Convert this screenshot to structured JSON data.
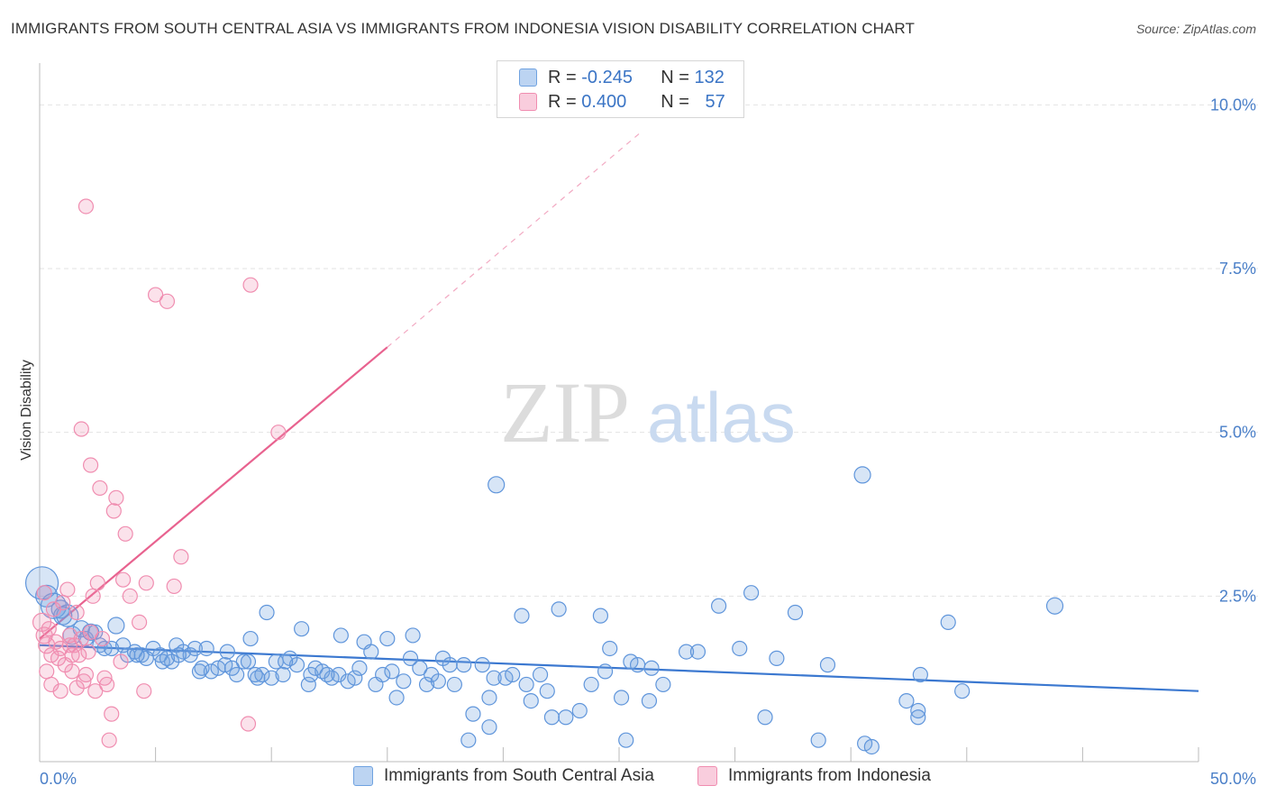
{
  "title": "IMMIGRANTS FROM SOUTH CENTRAL ASIA VS IMMIGRANTS FROM INDONESIA VISION DISABILITY CORRELATION CHART",
  "source": "Source: ZipAtlas.com",
  "watermark": {
    "zip": "ZIP",
    "atlas": "atlas"
  },
  "legend": {
    "rows": [
      {
        "r_label": "R = ",
        "r_value": "-0.245",
        "n_label": "N = ",
        "n_value": "132",
        "color": "#6fa2e0"
      },
      {
        "r_label": "R = ",
        "r_value": "0.400",
        "n_label": "N = ",
        "n_value": "57",
        "color": "#f08db0"
      }
    ]
  },
  "bottom_legend": [
    {
      "label": "Immigrants from South Central Asia",
      "color": "#6fa2e0"
    },
    {
      "label": "Immigrants from Indonesia",
      "color": "#f08db0"
    }
  ],
  "chart_data": {
    "type": "scatter",
    "title": "IMMIGRANTS FROM SOUTH CENTRAL ASIA VS IMMIGRANTS FROM INDONESIA VISION DISABILITY CORRELATION CHART",
    "xlabel": "",
    "ylabel": "Vision Disability",
    "xlim": [
      0,
      50
    ],
    "ylim": [
      0,
      10.5
    ],
    "x_tick_labels": [
      "0.0%",
      "50.0%"
    ],
    "y_tick_labels": [
      "2.5%",
      "5.0%",
      "7.5%",
      "10.0%"
    ],
    "y_ticks": [
      2.5,
      5.0,
      7.5,
      10.0
    ],
    "grid": "horizontal dashed",
    "series": [
      {
        "name": "Immigrants from South Central Asia",
        "color": "#6fa2e0",
        "trend": {
          "x0": 0,
          "y0": 1.75,
          "x1": 50,
          "y1": 1.05
        },
        "points": [
          [
            0.1,
            2.7,
            18
          ],
          [
            0.3,
            2.5,
            12
          ],
          [
            0.6,
            2.35,
            14
          ],
          [
            0.9,
            2.3,
            10
          ],
          [
            1.2,
            2.2,
            12
          ],
          [
            1.4,
            1.9,
            10
          ],
          [
            1.8,
            2.0,
            9
          ],
          [
            2.0,
            1.85,
            8
          ],
          [
            2.2,
            1.95,
            9
          ],
          [
            2.6,
            1.75,
            8
          ],
          [
            3.3,
            2.05,
            9
          ],
          [
            2.8,
            1.7,
            8
          ],
          [
            3.8,
            1.6,
            8
          ],
          [
            3.6,
            1.75,
            8
          ],
          [
            4.1,
            1.65,
            8
          ],
          [
            4.4,
            1.6,
            8
          ],
          [
            4.6,
            1.55,
            8
          ],
          [
            4.9,
            1.7,
            8
          ],
          [
            5.2,
            1.6,
            8
          ],
          [
            5.3,
            1.5,
            8
          ],
          [
            5.7,
            1.5,
            8
          ],
          [
            5.9,
            1.75,
            8
          ],
          [
            6.2,
            1.65,
            8
          ],
          [
            6.5,
            1.6,
            8
          ],
          [
            6.7,
            1.7,
            8
          ],
          [
            6.9,
            1.35,
            8
          ],
          [
            7.2,
            1.7,
            8
          ],
          [
            7.4,
            1.35,
            8
          ],
          [
            7.7,
            1.4,
            8
          ],
          [
            8.0,
            1.45,
            8
          ],
          [
            8.1,
            1.65,
            8
          ],
          [
            8.5,
            1.3,
            8
          ],
          [
            8.8,
            1.5,
            8
          ],
          [
            9.0,
            1.5,
            8
          ],
          [
            9.1,
            1.85,
            8
          ],
          [
            9.4,
            1.25,
            8
          ],
          [
            9.6,
            1.3,
            8
          ],
          [
            9.8,
            2.25,
            8
          ],
          [
            10.0,
            1.25,
            8
          ],
          [
            10.2,
            1.5,
            8
          ],
          [
            10.5,
            1.3,
            8
          ],
          [
            10.8,
            1.55,
            8
          ],
          [
            11.1,
            1.45,
            8
          ],
          [
            11.3,
            2.0,
            8
          ],
          [
            11.6,
            1.15,
            8
          ],
          [
            11.7,
            1.3,
            8
          ],
          [
            11.9,
            1.4,
            8
          ],
          [
            12.2,
            1.35,
            8
          ],
          [
            12.6,
            1.25,
            8
          ],
          [
            12.9,
            1.3,
            8
          ],
          [
            13.0,
            1.9,
            8
          ],
          [
            13.3,
            1.2,
            8
          ],
          [
            13.6,
            1.25,
            8
          ],
          [
            13.8,
            1.4,
            8
          ],
          [
            14.0,
            1.8,
            8
          ],
          [
            14.3,
            1.65,
            8
          ],
          [
            14.5,
            1.15,
            8
          ],
          [
            14.8,
            1.3,
            8
          ],
          [
            15.0,
            1.85,
            8
          ],
          [
            15.2,
            1.35,
            8
          ],
          [
            15.4,
            0.95,
            8
          ],
          [
            15.7,
            1.2,
            8
          ],
          [
            16.0,
            1.55,
            8
          ],
          [
            16.1,
            1.9,
            8
          ],
          [
            16.4,
            1.4,
            8
          ],
          [
            16.7,
            1.15,
            8
          ],
          [
            16.9,
            1.3,
            8
          ],
          [
            17.2,
            1.2,
            8
          ],
          [
            17.4,
            1.55,
            8
          ],
          [
            17.7,
            1.45,
            8
          ],
          [
            17.9,
            1.15,
            8
          ],
          [
            18.3,
            1.45,
            8
          ],
          [
            18.5,
            0.3,
            8
          ],
          [
            18.7,
            0.7,
            8
          ],
          [
            19.1,
            1.45,
            8
          ],
          [
            19.4,
            0.95,
            8
          ],
          [
            19.6,
            1.25,
            8
          ],
          [
            19.4,
            0.5,
            8
          ],
          [
            19.7,
            4.2,
            9
          ],
          [
            20.1,
            1.25,
            8
          ],
          [
            20.4,
            1.3,
            8
          ],
          [
            20.8,
            2.2,
            8
          ],
          [
            21.0,
            1.15,
            8
          ],
          [
            21.2,
            0.9,
            8
          ],
          [
            21.6,
            1.3,
            8
          ],
          [
            21.9,
            1.05,
            8
          ],
          [
            22.1,
            0.65,
            8
          ],
          [
            22.4,
            2.3,
            8
          ],
          [
            22.7,
            0.65,
            8
          ],
          [
            23.3,
            0.75,
            8
          ],
          [
            23.8,
            1.15,
            8
          ],
          [
            24.2,
            2.2,
            8
          ],
          [
            24.4,
            1.35,
            8
          ],
          [
            24.6,
            1.7,
            8
          ],
          [
            25.1,
            0.95,
            8
          ],
          [
            25.5,
            1.5,
            8
          ],
          [
            25.8,
            1.45,
            8
          ],
          [
            26.3,
            0.9,
            8
          ],
          [
            26.4,
            1.4,
            8
          ],
          [
            26.9,
            1.15,
            8
          ],
          [
            25.3,
            0.3,
            8
          ],
          [
            27.9,
            1.65,
            8
          ],
          [
            28.4,
            1.65,
            8
          ],
          [
            29.3,
            2.35,
            8
          ],
          [
            30.2,
            1.7,
            8
          ],
          [
            30.7,
            2.55,
            8
          ],
          [
            31.3,
            0.65,
            8
          ],
          [
            31.8,
            1.55,
            8
          ],
          [
            32.6,
            2.25,
            8
          ],
          [
            33.6,
            0.3,
            8
          ],
          [
            34.0,
            1.45,
            8
          ],
          [
            35.5,
            4.35,
            9
          ],
          [
            35.6,
            0.25,
            8
          ],
          [
            35.9,
            0.2,
            8
          ],
          [
            37.4,
            0.9,
            8
          ],
          [
            37.9,
            0.75,
            8
          ],
          [
            37.9,
            0.65,
            8
          ],
          [
            38.0,
            1.3,
            8
          ],
          [
            39.2,
            2.1,
            8
          ],
          [
            39.8,
            1.05,
            8
          ],
          [
            43.8,
            2.35,
            9
          ],
          [
            1.0,
            2.2,
            10
          ],
          [
            2.4,
            1.95,
            8
          ],
          [
            3.1,
            1.7,
            8
          ],
          [
            4.2,
            1.6,
            8
          ],
          [
            5.5,
            1.55,
            8
          ],
          [
            6.0,
            1.6,
            8
          ],
          [
            7.0,
            1.4,
            8
          ],
          [
            8.3,
            1.4,
            8
          ],
          [
            9.3,
            1.3,
            8
          ],
          [
            10.6,
            1.5,
            8
          ],
          [
            12.4,
            1.3,
            8
          ]
        ]
      },
      {
        "name": "Immigrants from Indonesia",
        "color": "#f08db0",
        "trend": {
          "x0": 0,
          "y0": 1.85,
          "x1": 15,
          "y1": 6.3,
          "dash_x1": 26,
          "dash_y1": 9.6
        },
        "points": [
          [
            0.1,
            2.1,
            10
          ],
          [
            0.2,
            1.9,
            9
          ],
          [
            0.3,
            1.75,
            9
          ],
          [
            0.4,
            2.0,
            8
          ],
          [
            0.5,
            1.6,
            8
          ],
          [
            0.6,
            2.3,
            8
          ],
          [
            0.7,
            1.8,
            8
          ],
          [
            0.8,
            1.55,
            8
          ],
          [
            0.9,
            1.7,
            8
          ],
          [
            1.0,
            2.4,
            8
          ],
          [
            1.1,
            1.45,
            8
          ],
          [
            1.2,
            2.6,
            8
          ],
          [
            1.3,
            1.9,
            8
          ],
          [
            1.4,
            1.35,
            8
          ],
          [
            1.5,
            1.75,
            8
          ],
          [
            1.6,
            2.25,
            8
          ],
          [
            1.7,
            1.6,
            8
          ],
          [
            1.8,
            1.85,
            8
          ],
          [
            1.3,
            1.75,
            8
          ],
          [
            1.9,
            1.2,
            8
          ],
          [
            2.0,
            1.3,
            8
          ],
          [
            2.1,
            1.65,
            8
          ],
          [
            2.2,
            1.95,
            8
          ],
          [
            2.3,
            2.5,
            8
          ],
          [
            2.4,
            1.05,
            8
          ],
          [
            2.5,
            2.7,
            8
          ],
          [
            2.6,
            4.15,
            8
          ],
          [
            2.7,
            1.85,
            8
          ],
          [
            2.8,
            1.25,
            8
          ],
          [
            2.9,
            1.15,
            8
          ],
          [
            3.0,
            0.3,
            8
          ],
          [
            3.1,
            0.7,
            8
          ],
          [
            3.2,
            3.8,
            8
          ],
          [
            3.3,
            4.0,
            8
          ],
          [
            3.5,
            1.5,
            8
          ],
          [
            3.6,
            2.75,
            8
          ],
          [
            3.7,
            3.45,
            8
          ],
          [
            3.9,
            2.5,
            8
          ],
          [
            4.3,
            2.1,
            8
          ],
          [
            4.6,
            2.7,
            8
          ],
          [
            4.5,
            1.05,
            8
          ],
          [
            5.0,
            7.1,
            8
          ],
          [
            5.5,
            7.0,
            8
          ],
          [
            5.8,
            2.65,
            8
          ],
          [
            6.1,
            3.1,
            8
          ],
          [
            1.8,
            5.05,
            8
          ],
          [
            2.2,
            4.5,
            8
          ],
          [
            2.0,
            8.45,
            8
          ],
          [
            9.1,
            7.25,
            8
          ],
          [
            10.3,
            5.0,
            8
          ],
          [
            9.0,
            0.55,
            8
          ],
          [
            0.3,
            1.35,
            8
          ],
          [
            0.5,
            1.15,
            8
          ],
          [
            0.9,
            1.05,
            8
          ],
          [
            1.4,
            1.6,
            8
          ],
          [
            0.2,
            2.55,
            8
          ],
          [
            1.6,
            1.1,
            8
          ]
        ]
      }
    ]
  }
}
